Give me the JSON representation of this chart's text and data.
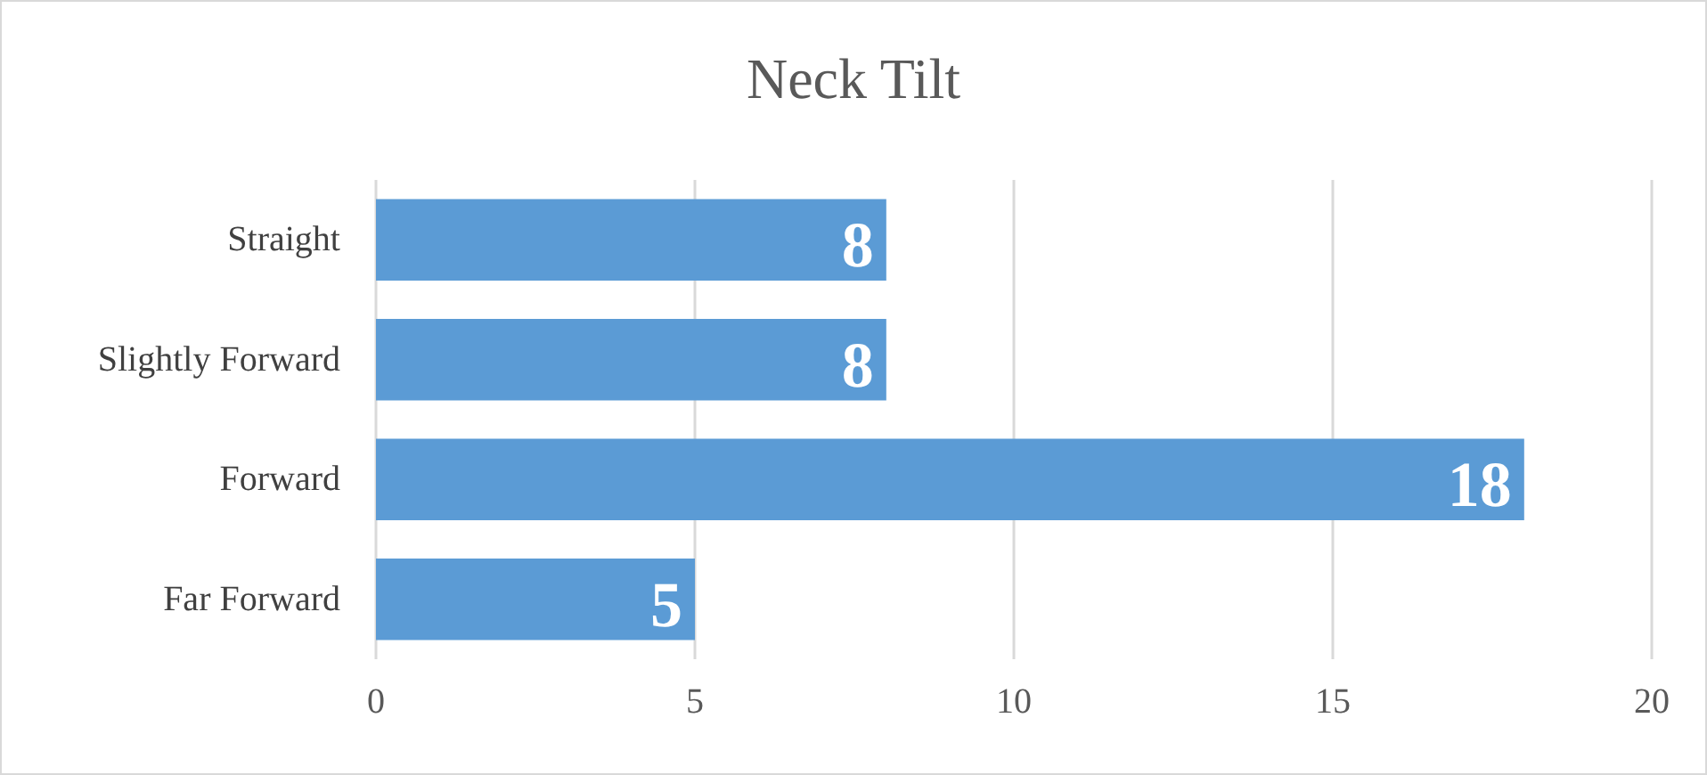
{
  "chart_data": {
    "type": "bar",
    "orientation": "horizontal",
    "title": "Neck Tilt",
    "categories": [
      "Straight",
      "Slightly Forward",
      "Forward",
      "Far Forward"
    ],
    "values": [
      8,
      8,
      18,
      5
    ],
    "color": "#5b9bd5",
    "xlim": [
      0,
      20
    ],
    "xticks": [
      0,
      5,
      10,
      15,
      20
    ],
    "grid": "x",
    "data_labels": true
  }
}
